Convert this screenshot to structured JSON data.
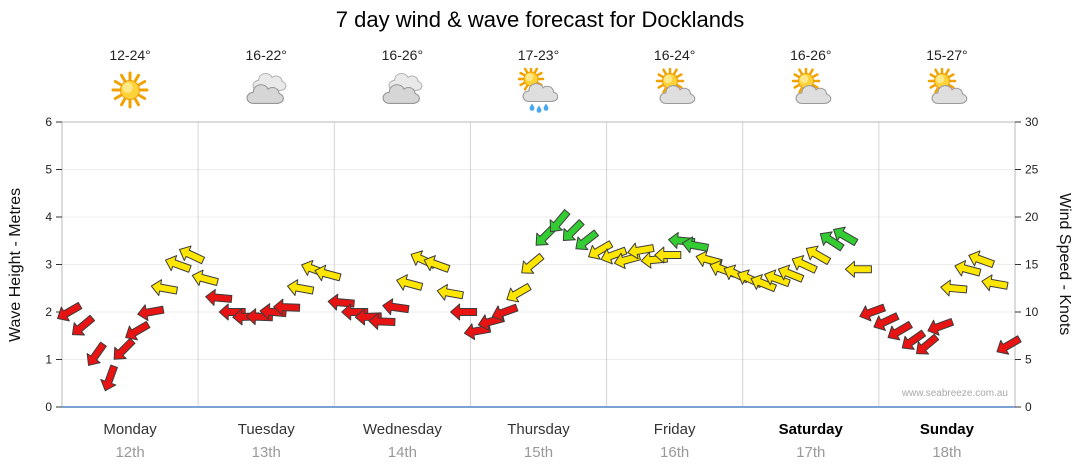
{
  "title": "7 day wind & wave forecast for Docklands",
  "watermark": "www.seabreeze.com.au",
  "chart_data": {
    "type": "wind-arrow-time-series",
    "title": "7 day wind & wave forecast for Docklands",
    "y_axis_left": {
      "label": "Wave Height - Metres",
      "min": 0,
      "max": 6,
      "ticks": [
        0,
        1,
        2,
        3,
        4,
        5,
        6
      ]
    },
    "y_axis_right": {
      "label": "Wind Speed - Knots",
      "min": 0,
      "max": 30,
      "ticks": [
        0,
        5,
        10,
        15,
        20,
        25,
        30
      ]
    },
    "days": [
      {
        "name": "Monday",
        "date": "12th",
        "temp": "12-24°",
        "icon": "sunny"
      },
      {
        "name": "Tuesday",
        "date": "13th",
        "temp": "16-22°",
        "icon": "cloudy"
      },
      {
        "name": "Wednesday",
        "date": "14th",
        "temp": "16-26°",
        "icon": "cloudy"
      },
      {
        "name": "Thursday",
        "date": "15th",
        "temp": "17-23°",
        "icon": "sun-showers"
      },
      {
        "name": "Friday",
        "date": "16th",
        "temp": "16-24°",
        "icon": "partly-cloudy"
      },
      {
        "name": "Saturday",
        "date": "17th",
        "temp": "16-26°",
        "icon": "partly-cloudy"
      },
      {
        "name": "Sunday",
        "date": "18th",
        "temp": "15-27°",
        "icon": "partly-cloudy"
      }
    ],
    "wind_speed_color_scale": [
      {
        "label": "under 12 knots",
        "max_knots": 11.9,
        "color": "#e81313"
      },
      {
        "label": "12-16 knots",
        "max_knots": 16.9,
        "color": "#ffe600"
      },
      {
        "label": "17+ knots",
        "max_knots": 999,
        "color": "#33cc33"
      }
    ],
    "points_format": "[wind_speed_knots, arrow_rotation_deg]",
    "points": [
      [
        10,
        150
      ],
      [
        8.5,
        140
      ],
      [
        5.5,
        125
      ],
      [
        3,
        110
      ],
      [
        6,
        135
      ],
      [
        8,
        150
      ],
      [
        10,
        170
      ],
      [
        12.5,
        190
      ],
      [
        15,
        200
      ],
      [
        16,
        205
      ],
      [
        13.5,
        195
      ],
      [
        11.5,
        185
      ],
      [
        10,
        180
      ],
      [
        9.5,
        178
      ],
      [
        9.5,
        182
      ],
      [
        10,
        185
      ],
      [
        10.5,
        182
      ],
      [
        12.5,
        190
      ],
      [
        14.5,
        200
      ],
      [
        14,
        195
      ],
      [
        11,
        185
      ],
      [
        10,
        180
      ],
      [
        9.5,
        178
      ],
      [
        9,
        182
      ],
      [
        10.5,
        188
      ],
      [
        13,
        195
      ],
      [
        15.5,
        205
      ],
      [
        15,
        200
      ],
      [
        12,
        190
      ],
      [
        10,
        180
      ],
      [
        8,
        170
      ],
      [
        9,
        165
      ],
      [
        10,
        160
      ],
      [
        12,
        150
      ],
      [
        15,
        140
      ],
      [
        18,
        135
      ],
      [
        19.5,
        130
      ],
      [
        18.5,
        135
      ],
      [
        17.5,
        142
      ],
      [
        16.5,
        150
      ],
      [
        16,
        160
      ],
      [
        15.5,
        165
      ],
      [
        16.5,
        170
      ],
      [
        15.5,
        175
      ],
      [
        16,
        180
      ],
      [
        17.5,
        185
      ],
      [
        17,
        190
      ],
      [
        15.5,
        195
      ],
      [
        14.5,
        200
      ],
      [
        14,
        205
      ],
      [
        13.5,
        205
      ],
      [
        13,
        202
      ],
      [
        13.5,
        200
      ],
      [
        14,
        202
      ],
      [
        15,
        205
      ],
      [
        16,
        210
      ],
      [
        17.5,
        213
      ],
      [
        18,
        210
      ],
      [
        14.5,
        180
      ],
      [
        10,
        160
      ],
      [
        9,
        155
      ],
      [
        8,
        150
      ],
      [
        7,
        145
      ],
      [
        6.5,
        140
      ],
      [
        8.5,
        160
      ],
      [
        12.5,
        185
      ],
      [
        14.5,
        195
      ],
      [
        15.5,
        200
      ],
      [
        13,
        190
      ],
      [
        6.5,
        150
      ]
    ]
  }
}
